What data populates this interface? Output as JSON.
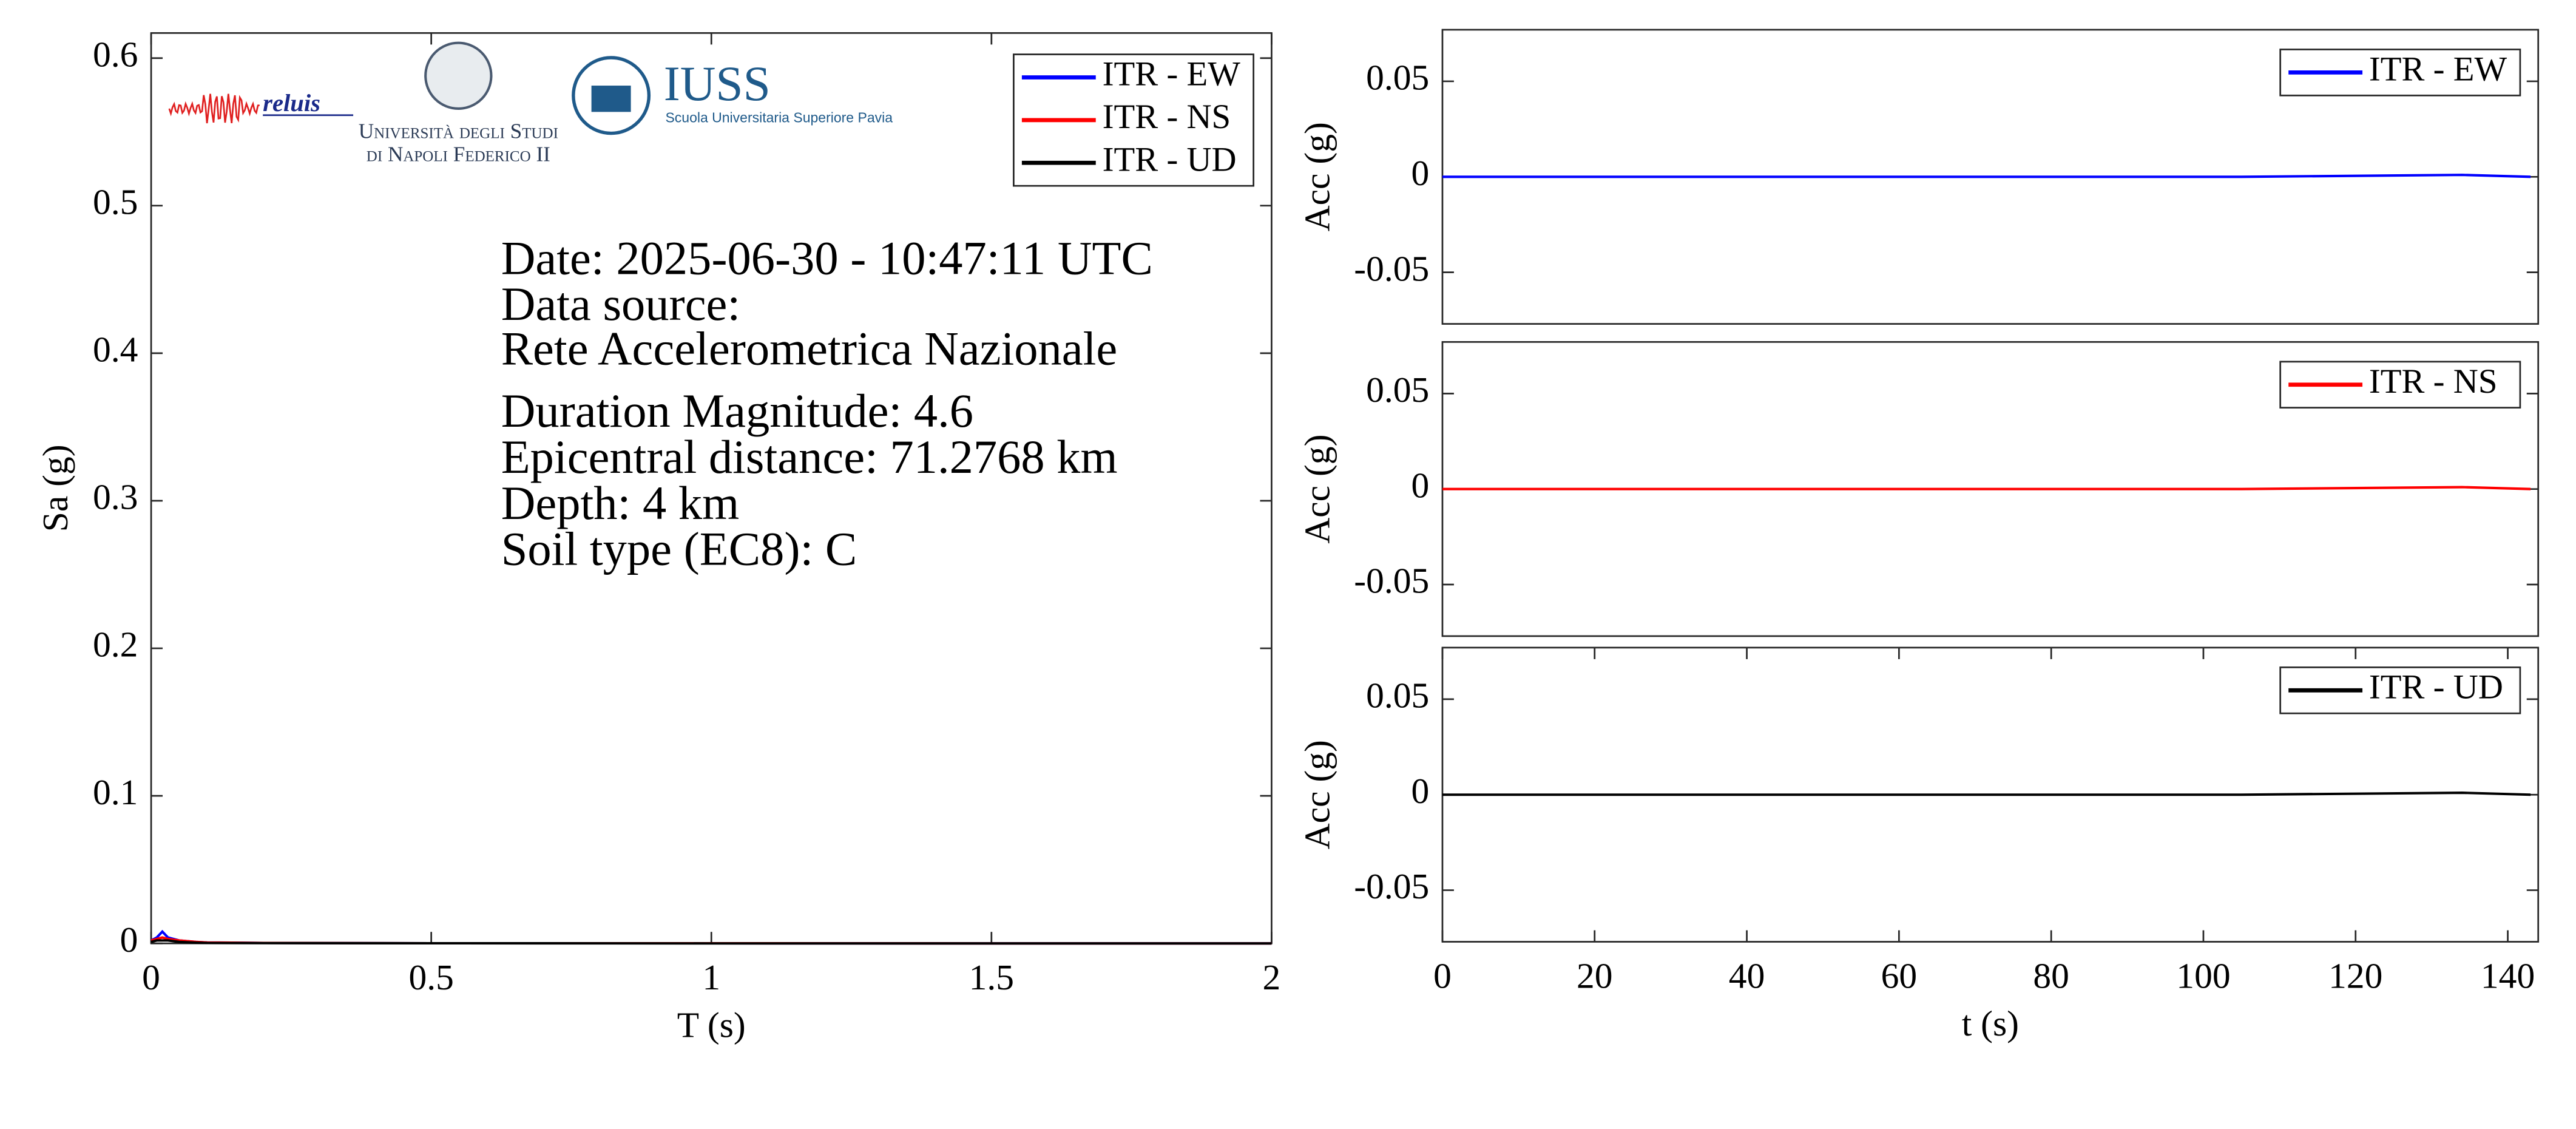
{
  "chart_data": [
    {
      "type": "line",
      "xlabel": "T (s)",
      "ylabel": "Sa (g)",
      "x": [
        0,
        0.01,
        0.02,
        0.03,
        0.05,
        0.08,
        0.1,
        0.2,
        0.5,
        1,
        1.5,
        2
      ],
      "series": [
        {
          "name": "ITR - EW",
          "color": "#0000ff",
          "values": [
            0.002,
            0.004,
            0.008,
            0.004,
            0.002,
            0.001,
            0.0006,
            0.0003,
            0.0001,
            0.0001,
            0,
            0
          ]
        },
        {
          "name": "ITR - NS",
          "color": "#ff0000",
          "values": [
            0.002,
            0.003,
            0.004,
            0.003,
            0.002,
            0.001,
            0.0006,
            0.0003,
            0.0001,
            0.0001,
            0,
            0
          ]
        },
        {
          "name": "ITR - UD",
          "color": "#000000",
          "values": [
            0.001,
            0.002,
            0.002,
            0.002,
            0.001,
            0.0005,
            0.0003,
            0.0002,
            0.0001,
            0,
            0,
            0
          ]
        }
      ],
      "xlim": [
        0,
        2
      ],
      "ylim": [
        0,
        0.617
      ],
      "xticks": [
        0,
        0.5,
        1,
        1.5,
        2
      ],
      "yticks": [
        0,
        0.1,
        0.2,
        0.3,
        0.4,
        0.5,
        0.6
      ],
      "legend": "upper right",
      "annotations": [
        "Date: 2025-06-30 - 10:47:11 UTC",
        "Data source:",
        "Rete Accelerometrica Nazionale",
        "Duration Magnitude: 4.6",
        "Epicentral distance: 71.2768 km",
        "Depth: 4 km",
        "Soil type (EC8): C"
      ],
      "logo_texts": [
        "reluis",
        "Università degli Studi",
        "di Napoli Federico II",
        "IUSS",
        "Scuola Universitaria Superiore Pavia"
      ]
    },
    {
      "type": "line",
      "ylabel": "Acc (g)",
      "x": [
        0,
        35,
        70,
        105,
        134,
        143
      ],
      "series": [
        {
          "name": "ITR - EW",
          "color": "#0000ff",
          "values": [
            0,
            0,
            0,
            0,
            0.001,
            0
          ]
        }
      ],
      "xlim": [
        0,
        144
      ],
      "ylim": [
        -0.077,
        0.077
      ],
      "yticks": [
        -0.05,
        0,
        0.05
      ],
      "legend": "upper right"
    },
    {
      "type": "line",
      "ylabel": "Acc (g)",
      "x": [
        0,
        35,
        70,
        105,
        134,
        143
      ],
      "series": [
        {
          "name": "ITR - NS",
          "color": "#ff0000",
          "values": [
            0,
            0,
            0,
            0,
            0.001,
            0
          ]
        }
      ],
      "xlim": [
        0,
        144
      ],
      "ylim": [
        -0.077,
        0.077
      ],
      "yticks": [
        -0.05,
        0,
        0.05
      ],
      "legend": "upper right"
    },
    {
      "type": "line",
      "xlabel": "t (s)",
      "ylabel": "Acc (g)",
      "x": [
        0,
        35,
        70,
        105,
        134,
        143
      ],
      "series": [
        {
          "name": "ITR - UD",
          "color": "#000000",
          "values": [
            0,
            0,
            0,
            0,
            0.001,
            0
          ]
        }
      ],
      "xlim": [
        0,
        144
      ],
      "ylim": [
        -0.077,
        0.077
      ],
      "xticks": [
        0,
        20,
        40,
        60,
        80,
        100,
        120,
        140
      ],
      "yticks": [
        -0.05,
        0,
        0.05
      ],
      "legend": "upper right"
    }
  ]
}
